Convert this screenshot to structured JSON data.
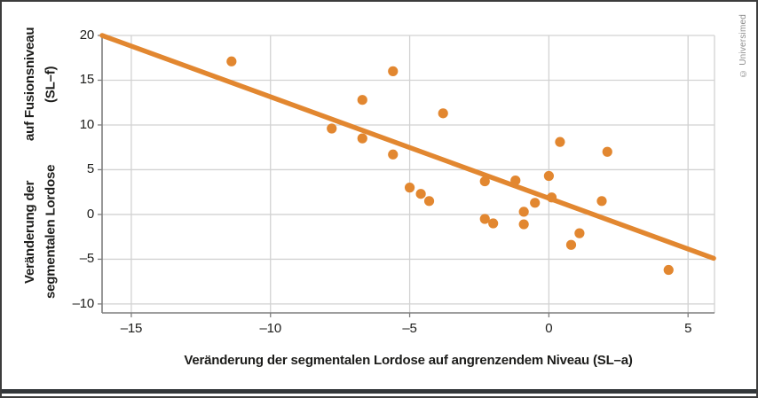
{
  "figure": {
    "credit": "© Universimed"
  },
  "chart_data": {
    "type": "scatter",
    "title": "",
    "xlabel": "Veränderung der segmentalen Lordose auf angrenzendem Niveau (SL–a)",
    "ylabel": "Veränderung der segmentalen Lordose auf Fusionsniveau (SL–f)",
    "ylabel_lines": [
      "Veränderung der segmentalen Lordose",
      "auf Fusionsniveau (SL–f)"
    ],
    "xlim": [
      -16.05,
      5.95
    ],
    "ylim": [
      -11,
      20
    ],
    "grid": true,
    "x_ticks": [
      {
        "value": -15,
        "label": "–15"
      },
      {
        "value": -10,
        "label": "–10"
      },
      {
        "value": -5,
        "label": "–5"
      },
      {
        "value": 0,
        "label": "0"
      },
      {
        "value": 5,
        "label": "5"
      }
    ],
    "y_ticks": [
      {
        "value": 20,
        "label": "20"
      },
      {
        "value": 15,
        "label": "15"
      },
      {
        "value": 10,
        "label": "10"
      },
      {
        "value": 5,
        "label": "5"
      },
      {
        "value": 0,
        "label": "0"
      },
      {
        "value": -5,
        "label": "–5"
      },
      {
        "value": -10,
        "label": "–10"
      }
    ],
    "points": [
      [
        -11.4,
        17.1
      ],
      [
        -7.8,
        9.6
      ],
      [
        -6.7,
        12.8
      ],
      [
        -6.7,
        8.5
      ],
      [
        -5.6,
        16.0
      ],
      [
        -5.6,
        6.7
      ],
      [
        -5.0,
        3.0
      ],
      [
        -4.6,
        2.3
      ],
      [
        -4.3,
        1.5
      ],
      [
        -3.8,
        11.3
      ],
      [
        -2.3,
        3.7
      ],
      [
        -2.3,
        -0.5
      ],
      [
        -2.0,
        -1.0
      ],
      [
        -1.2,
        3.8
      ],
      [
        -0.9,
        0.3
      ],
      [
        -0.9,
        -1.1
      ],
      [
        -0.5,
        1.3
      ],
      [
        0.0,
        4.3
      ],
      [
        0.1,
        1.9
      ],
      [
        0.4,
        8.1
      ],
      [
        0.8,
        -3.4
      ],
      [
        1.1,
        -2.1
      ],
      [
        1.9,
        1.5
      ],
      [
        2.1,
        7.0
      ],
      [
        4.3,
        -6.2
      ]
    ],
    "trendline": {
      "x1": -16.05,
      "y1": 20.0,
      "x2": 5.92,
      "y2": -4.9
    },
    "legend": null,
    "colors": {
      "accent": "#E28730",
      "grid": "#d2d2d2",
      "axis": "#7f7f7f",
      "text": "#1d1d1b",
      "credit": "#8f8f8f",
      "frame": "#3c3c3c"
    }
  }
}
